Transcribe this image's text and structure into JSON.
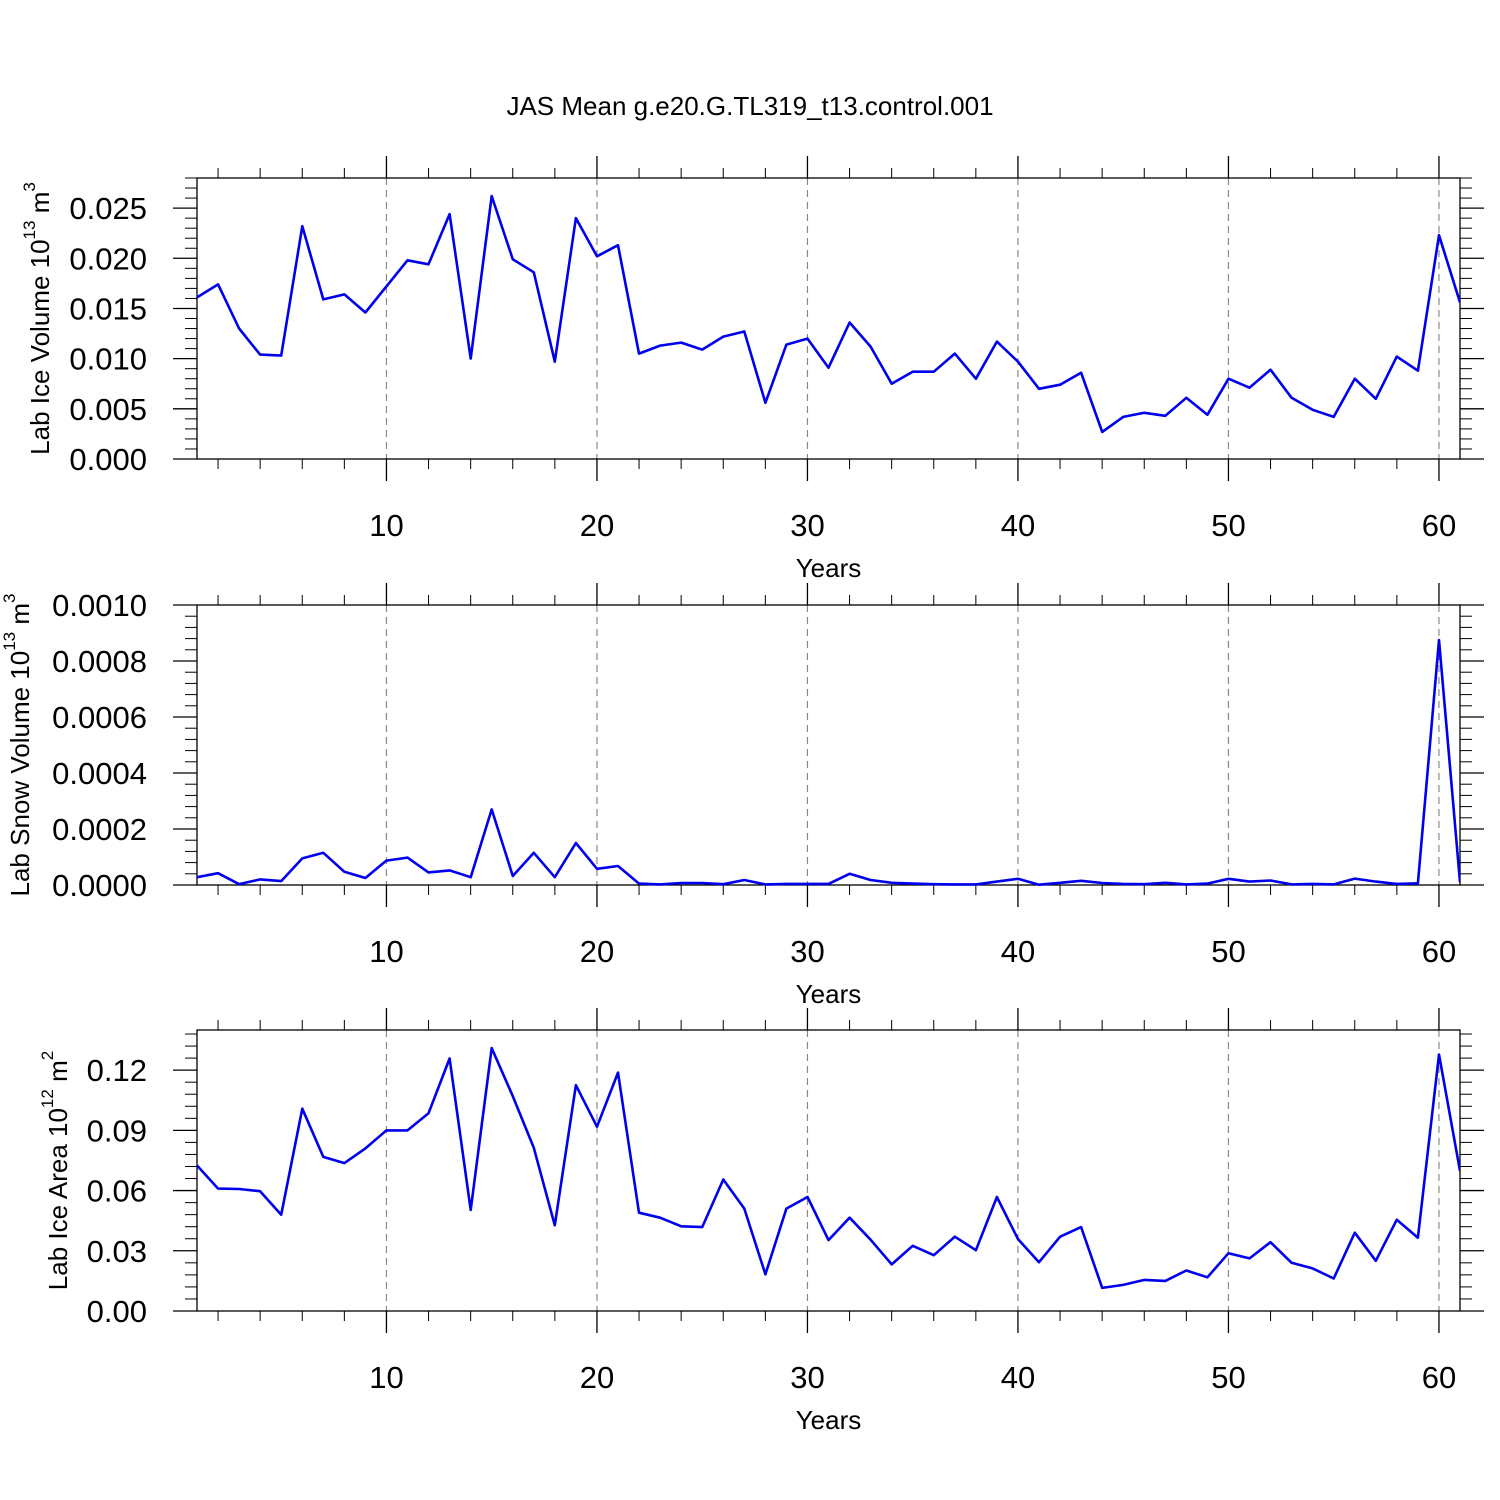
{
  "title": "JAS Mean g.e20.G.TL319_t13.control.001",
  "line_color": "#0000ee",
  "chart_data": [
    {
      "type": "line",
      "xlabel": "Years",
      "ylabel": "Lab Ice Volume 10",
      "ylabel_exp": "13",
      "ylabel_unit": " m",
      "ylabel_unit_exp": "3",
      "xlim": [
        1,
        61
      ],
      "ylim": [
        0,
        0.028
      ],
      "xticks": [
        10,
        20,
        30,
        40,
        50,
        60
      ],
      "xtick_labels": [
        "10",
        "20",
        "30",
        "40",
        "50",
        "60"
      ],
      "yticks": [
        0,
        0.005,
        0.01,
        0.015,
        0.02,
        0.025
      ],
      "ytick_labels": [
        "0.000",
        "0.005",
        "0.010",
        "0.015",
        "0.020",
        "0.025"
      ],
      "grid": "vertical-dashed",
      "x": [
        1,
        2,
        3,
        4,
        5,
        6,
        7,
        8,
        9,
        10,
        11,
        12,
        13,
        14,
        15,
        16,
        17,
        18,
        19,
        20,
        21,
        22,
        23,
        24,
        25,
        26,
        27,
        28,
        29,
        30,
        31,
        32,
        33,
        34,
        35,
        36,
        37,
        38,
        39,
        40,
        41,
        42,
        43,
        44,
        45,
        46,
        47,
        48,
        49,
        50,
        51,
        52,
        53,
        54,
        55,
        56,
        57,
        58,
        59,
        60,
        61
      ],
      "series": [
        {
          "values": [
            0.0161,
            0.0174,
            0.013,
            0.0104,
            0.0103,
            0.0232,
            0.0159,
            0.0164,
            0.0146,
            0.0172,
            0.0198,
            0.0194,
            0.0244,
            0.01,
            0.0262,
            0.0199,
            0.0186,
            0.0097,
            0.024,
            0.0202,
            0.0213,
            0.0105,
            0.0113,
            0.0116,
            0.0109,
            0.0122,
            0.0127,
            0.0056,
            0.0114,
            0.012,
            0.0091,
            0.0136,
            0.0112,
            0.0075,
            0.0087,
            0.0087,
            0.0105,
            0.008,
            0.0117,
            0.0097,
            0.007,
            0.0074,
            0.0086,
            0.0027,
            0.0042,
            0.0046,
            0.0043,
            0.0061,
            0.0044,
            0.008,
            0.0071,
            0.0089,
            0.0061,
            0.0049,
            0.0042,
            0.008,
            0.006,
            0.0102,
            0.0088,
            0.0223,
            0.0156
          ]
        }
      ]
    },
    {
      "type": "line",
      "xlabel": "Years",
      "ylabel": "Lab Snow Volume 10",
      "ylabel_exp": "13",
      "ylabel_unit": " m",
      "ylabel_unit_exp": "3",
      "xlim": [
        1,
        61
      ],
      "ylim": [
        0,
        0.001
      ],
      "xticks": [
        10,
        20,
        30,
        40,
        50,
        60
      ],
      "xtick_labels": [
        "10",
        "20",
        "30",
        "40",
        "50",
        "60"
      ],
      "yticks": [
        0,
        0.0002,
        0.0004,
        0.0006,
        0.0008,
        0.001
      ],
      "ytick_labels": [
        "0.0000",
        "0.0002",
        "0.0004",
        "0.0006",
        "0.0008",
        "0.0010"
      ],
      "grid": "vertical-dashed",
      "x": [
        1,
        2,
        3,
        4,
        5,
        6,
        7,
        8,
        9,
        10,
        11,
        12,
        13,
        14,
        15,
        16,
        17,
        18,
        19,
        20,
        21,
        22,
        23,
        24,
        25,
        26,
        27,
        28,
        29,
        30,
        31,
        32,
        33,
        34,
        35,
        36,
        37,
        38,
        39,
        40,
        41,
        42,
        43,
        44,
        45,
        46,
        47,
        48,
        49,
        50,
        51,
        52,
        53,
        54,
        55,
        56,
        57,
        58,
        59,
        60,
        61
      ],
      "series": [
        {
          "values": [
            2.8e-05,
            4.2e-05,
            3e-06,
            2e-05,
            1.4e-05,
            9.5e-05,
            0.000115,
            4.7e-05,
            2.5e-05,
            8.7e-05,
            9.8e-05,
            4.5e-05,
            5.2e-05,
            2.8e-05,
            0.00027,
            3.2e-05,
            0.000115,
            2.8e-05,
            0.00015,
            5.8e-05,
            6.8e-05,
            5e-06,
            2e-06,
            7e-06,
            7e-06,
            3e-06,
            1.8e-05,
            2e-06,
            4e-06,
            4e-06,
            4e-06,
            4e-05,
            1.8e-05,
            8e-06,
            5e-06,
            3e-06,
            2e-06,
            2e-06,
            1.2e-05,
            2.2e-05,
            1e-06,
            8e-06,
            1.5e-05,
            7e-06,
            4e-06,
            3e-06,
            8e-06,
            2e-06,
            5e-06,
            2.2e-05,
            1.2e-05,
            1.6e-05,
            2e-06,
            4e-06,
            2e-06,
            2.3e-05,
            1.2e-05,
            4e-06,
            6e-06,
            0.000875,
            1e-05
          ]
        }
      ]
    },
    {
      "type": "line",
      "xlabel": "Years",
      "ylabel": "Lab Ice Area 10",
      "ylabel_exp": "12",
      "ylabel_unit": " m",
      "ylabel_unit_exp": "2",
      "xlim": [
        1,
        61
      ],
      "ylim": [
        0,
        0.14
      ],
      "xticks": [
        10,
        20,
        30,
        40,
        50,
        60
      ],
      "xtick_labels": [
        "10",
        "20",
        "30",
        "40",
        "50",
        "60"
      ],
      "yticks": [
        0,
        0.03,
        0.06,
        0.09,
        0.12
      ],
      "ytick_labels": [
        "0.00",
        "0.03",
        "0.06",
        "0.09",
        "0.12"
      ],
      "grid": "vertical-dashed",
      "x": [
        1,
        2,
        3,
        4,
        5,
        6,
        7,
        8,
        9,
        10,
        11,
        12,
        13,
        14,
        15,
        16,
        17,
        18,
        19,
        20,
        21,
        22,
        23,
        24,
        25,
        26,
        27,
        28,
        29,
        30,
        31,
        32,
        33,
        34,
        35,
        36,
        37,
        38,
        39,
        40,
        41,
        42,
        43,
        44,
        45,
        46,
        47,
        48,
        49,
        50,
        51,
        52,
        53,
        54,
        55,
        56,
        57,
        58,
        59,
        60,
        61
      ],
      "series": [
        {
          "values": [
            0.0725,
            0.061,
            0.0608,
            0.0597,
            0.048,
            0.1008,
            0.0768,
            0.0737,
            0.081,
            0.09,
            0.09,
            0.0985,
            0.1258,
            0.0503,
            0.131,
            0.107,
            0.0813,
            0.0427,
            0.1125,
            0.0918,
            0.1188,
            0.049,
            0.0465,
            0.0422,
            0.0418,
            0.0655,
            0.051,
            0.0183,
            0.051,
            0.0568,
            0.0353,
            0.0465,
            0.0355,
            0.0232,
            0.0325,
            0.0278,
            0.037,
            0.0303,
            0.0568,
            0.0358,
            0.0243,
            0.037,
            0.0418,
            0.0115,
            0.013,
            0.0155,
            0.015,
            0.0202,
            0.0168,
            0.0288,
            0.0262,
            0.0343,
            0.024,
            0.0212,
            0.0162,
            0.039,
            0.025,
            0.0455,
            0.0365,
            0.1278,
            0.0698
          ]
        }
      ]
    }
  ]
}
